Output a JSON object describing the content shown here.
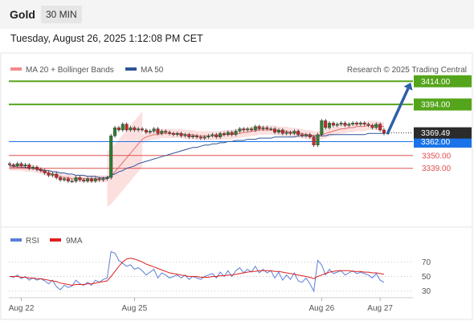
{
  "header": {
    "title": "Gold",
    "timeframe": "30 MIN"
  },
  "timestamp": "Tuesday, August 26, 2025 1:12:08 PM CET",
  "legend": [
    {
      "label": "MA 20 + Bollinger Bands",
      "color": "#f28b8b"
    },
    {
      "label": "MA 50",
      "color": "#2f5597"
    }
  ],
  "credit": "Research © 2025 Trading Central",
  "rsi_legend": [
    {
      "label": "RSI",
      "color": "#5b7fd6"
    },
    {
      "label": "9MA",
      "color": "#e02020"
    }
  ],
  "chart_data": {
    "type": "line",
    "price": {
      "last": "3369.49",
      "levels": [
        {
          "value": 3414.0,
          "label": "3414.00",
          "color": "#55a51c",
          "kind": "resistance"
        },
        {
          "value": 3394.0,
          "label": "3394.00",
          "color": "#55a51c",
          "kind": "resistance"
        },
        {
          "value": 3362.0,
          "label": "3362.00",
          "color": "#1a73e8",
          "kind": "pivot"
        },
        {
          "value": 3350.0,
          "label": "3350.00",
          "color": "#e05050",
          "kind": "support"
        },
        {
          "value": 3339.0,
          "label": "3339.00",
          "color": "#e05050",
          "kind": "support"
        }
      ],
      "ylim": [
        3289,
        3437
      ],
      "candles_close": [
        3342,
        3341,
        3343,
        3341,
        3342,
        3339,
        3340,
        3338,
        3337,
        3335,
        3333,
        3334,
        3331,
        3329,
        3330,
        3328,
        3328,
        3331,
        3329,
        3328,
        3330,
        3328,
        3330,
        3329,
        3330,
        3331,
        3367,
        3374,
        3372,
        3377,
        3372,
        3374,
        3372,
        3373,
        3372,
        3370,
        3371,
        3373,
        3369,
        3371,
        3370,
        3369,
        3368,
        3369,
        3367,
        3368,
        3366,
        3367,
        3366,
        3365,
        3366,
        3367,
        3368,
        3366,
        3369,
        3368,
        3370,
        3368,
        3371,
        3373,
        3372,
        3373,
        3372,
        3375,
        3373,
        3374,
        3373,
        3373,
        3370,
        3372,
        3369,
        3370,
        3369,
        3371,
        3368,
        3367,
        3368,
        3366,
        3359,
        3368,
        3380,
        3374,
        3378,
        3376,
        3377,
        3378,
        3376,
        3377,
        3378,
        3377,
        3378,
        3377,
        3376,
        3374,
        3377,
        3372,
        3369
      ],
      "ma20": [
        3340,
        3340,
        3340,
        3340,
        3339,
        3339,
        3339,
        3338,
        3337,
        3336,
        3335,
        3334,
        3333,
        3332,
        3331,
        3331,
        3330,
        3330,
        3330,
        3330,
        3330,
        3330,
        3330,
        3330,
        3330,
        3330,
        3332,
        3336,
        3340,
        3344,
        3348,
        3352,
        3356,
        3360,
        3364,
        3366,
        3367,
        3368,
        3368,
        3369,
        3369,
        3369,
        3369,
        3369,
        3369,
        3368,
        3368,
        3368,
        3367,
        3367,
        3367,
        3367,
        3367,
        3367,
        3367,
        3368,
        3368,
        3368,
        3369,
        3369,
        3370,
        3370,
        3371,
        3371,
        3372,
        3372,
        3372,
        3372,
        3372,
        3371,
        3371,
        3371,
        3370,
        3370,
        3369,
        3369,
        3368,
        3368,
        3367,
        3367,
        3368,
        3369,
        3370,
        3371,
        3372,
        3373,
        3373,
        3374,
        3374,
        3375,
        3375,
        3375,
        3376,
        3376,
        3376,
        3375,
        3375
      ],
      "ma50": [
        3341,
        3341,
        3340,
        3340,
        3340,
        3339,
        3339,
        3338,
        3338,
        3337,
        3337,
        3336,
        3336,
        3335,
        3335,
        3334,
        3334,
        3333,
        3333,
        3333,
        3332,
        3332,
        3332,
        3331,
        3331,
        3331,
        3333,
        3334,
        3336,
        3337,
        3339,
        3340,
        3341,
        3343,
        3344,
        3345,
        3346,
        3347,
        3348,
        3349,
        3350,
        3351,
        3352,
        3353,
        3354,
        3355,
        3356,
        3357,
        3357,
        3358,
        3359,
        3359,
        3360,
        3360,
        3361,
        3361,
        3362,
        3362,
        3363,
        3363,
        3363,
        3364,
        3364,
        3364,
        3365,
        3365,
        3365,
        3365,
        3366,
        3366,
        3366,
        3366,
        3366,
        3366,
        3367,
        3367,
        3367,
        3367,
        3367,
        3367,
        3367,
        3367,
        3368,
        3368,
        3368,
        3368,
        3368,
        3368,
        3368,
        3368,
        3368,
        3368,
        3369,
        3369,
        3369,
        3369,
        3369
      ]
    },
    "rsi": {
      "ticks": [
        70,
        50,
        30
      ],
      "ylim": [
        22,
        88
      ],
      "rsi": [
        50,
        49,
        52,
        47,
        50,
        45,
        48,
        45,
        47,
        44,
        40,
        45,
        36,
        32,
        38,
        35,
        37,
        45,
        40,
        38,
        42,
        38,
        45,
        42,
        46,
        48,
        84,
        82,
        72,
        68,
        64,
        66,
        60,
        62,
        58,
        52,
        56,
        60,
        48,
        55,
        52,
        48,
        50,
        52,
        48,
        52,
        46,
        50,
        48,
        46,
        50,
        52,
        54,
        48,
        56,
        50,
        58,
        50,
        58,
        62,
        55,
        60,
        56,
        64,
        55,
        60,
        55,
        58,
        48,
        56,
        45,
        52,
        46,
        55,
        44,
        42,
        48,
        40,
        30,
        72,
        66,
        52,
        60,
        54,
        56,
        58,
        52,
        55,
        58,
        54,
        56,
        54,
        52,
        48,
        54,
        45,
        42
      ],
      "ma9": [
        50,
        50,
        50,
        49,
        49,
        48,
        48,
        47,
        47,
        46,
        45,
        44,
        43,
        41,
        40,
        39,
        38,
        39,
        39,
        39,
        40,
        40,
        41,
        42,
        43,
        44,
        50,
        57,
        64,
        70,
        74,
        75,
        74,
        72,
        70,
        67,
        65,
        63,
        61,
        59,
        57,
        55,
        54,
        53,
        52,
        51,
        50,
        50,
        50,
        49,
        49,
        49,
        50,
        50,
        51,
        51,
        52,
        52,
        53,
        54,
        55,
        56,
        57,
        57,
        58,
        58,
        58,
        58,
        57,
        57,
        56,
        55,
        54,
        53,
        52,
        51,
        50,
        49,
        47,
        50,
        52,
        54,
        56,
        57,
        58,
        58,
        58,
        58,
        57,
        57,
        57,
        56,
        56,
        55,
        55,
        54,
        53
      ]
    },
    "x_ticks": [
      "Aug 22",
      "Aug 25",
      "Aug 26",
      "Aug 27"
    ]
  }
}
